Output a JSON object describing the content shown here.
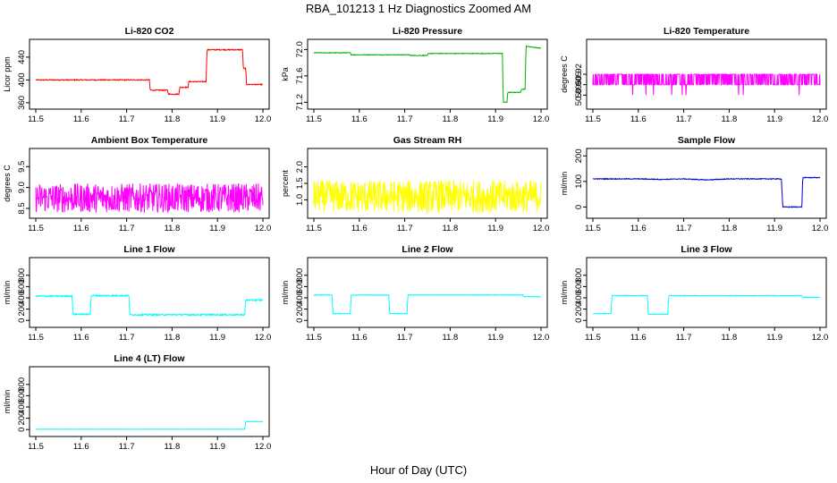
{
  "header": {
    "title": "RBA_101213  1 Hz Diagnostics Zoomed AM"
  },
  "footer": {
    "xlabel": "Hour of Day (UTC)"
  },
  "chart_data": [
    {
      "type": "line",
      "title": "Li-820 CO2",
      "ylabel": "Licor ppm",
      "color": "#ff0000",
      "xlim": [
        11.5,
        12.0
      ],
      "ylim": [
        355,
        465
      ],
      "xticks": [
        "11.5",
        "11.6",
        "11.7",
        "11.8",
        "11.9",
        "12.0"
      ],
      "yticks": [
        {
          "value": 360,
          "label": "360"
        },
        {
          "value": 400,
          "label": "400"
        },
        {
          "value": 440,
          "label": "440"
        }
      ],
      "noise": 0.8,
      "series": [
        {
          "x": [
            11.5,
            11.75,
            11.752,
            11.79,
            11.792,
            11.815,
            11.817,
            11.835,
            11.837,
            11.875,
            11.877,
            11.955,
            11.957,
            11.962,
            11.964,
            12.0
          ],
          "y": [
            400,
            400,
            382,
            382,
            375,
            375,
            387,
            387,
            397,
            397,
            453,
            453,
            420,
            420,
            392,
            392
          ]
        }
      ]
    },
    {
      "type": "line",
      "title": "Li-820 Pressure",
      "ylabel": "kPa",
      "color": "#00b000",
      "xlim": [
        11.5,
        12.0
      ],
      "ylim": [
        71.15,
        72.1
      ],
      "xticks": [
        "11.5",
        "11.6",
        "11.7",
        "11.8",
        "11.9",
        "12.0"
      ],
      "yticks": [
        {
          "value": 71.2,
          "label": "71.2"
        },
        {
          "value": 71.6,
          "label": "71.6"
        },
        {
          "value": 72.0,
          "label": "72.0"
        }
      ],
      "noise": 0.005,
      "series": [
        {
          "x": [
            11.5,
            11.58,
            11.582,
            11.71,
            11.712,
            11.75,
            11.752,
            11.915,
            11.917,
            11.925,
            11.927,
            11.955,
            11.957,
            11.965,
            11.967,
            12.0
          ],
          "y": [
            71.95,
            71.95,
            71.92,
            71.92,
            71.91,
            71.91,
            71.94,
            71.94,
            71.2,
            71.2,
            71.35,
            71.35,
            71.4,
            71.4,
            72.05,
            72.02
          ]
        }
      ]
    },
    {
      "type": "line",
      "title": "Li-820 Temperature",
      "ylabel": "degrees C",
      "color": "#ff00ff",
      "xlim": [
        11.5,
        12.0
      ],
      "ylim": [
        50.875,
        50.965
      ],
      "xticks": [
        "11.5",
        "11.6",
        "11.7",
        "11.8",
        "11.9",
        "12.0"
      ],
      "yticks": [
        {
          "value": 50.89,
          "label": "50.89"
        },
        {
          "value": 50.905,
          "label": "50.905"
        },
        {
          "value": 50.92,
          "label": "50.92"
        }
      ],
      "quantized": [
        50.92,
        50.905,
        50.89
      ],
      "series": [
        {
          "x": [
            11.5,
            12.0
          ],
          "y": [
            50.92,
            50.92
          ]
        }
      ]
    },
    {
      "type": "line",
      "title": "Ambient Box Temperature",
      "ylabel": "degrees C",
      "color": "#ff00ff",
      "xlim": [
        11.5,
        12.0
      ],
      "ylim": [
        8.35,
        9.85
      ],
      "xticks": [
        "11.5",
        "11.6",
        "11.7",
        "11.8",
        "11.9",
        "12.0"
      ],
      "yticks": [
        {
          "value": 8.5,
          "label": "8.5"
        },
        {
          "value": 9.0,
          "label": "9.0"
        },
        {
          "value": 9.5,
          "label": "9.5"
        }
      ],
      "noise": 0.35,
      "series": [
        {
          "x": [
            11.5,
            12.0
          ],
          "y": [
            8.75,
            8.75
          ]
        }
      ]
    },
    {
      "type": "line",
      "title": "Gas Stream RH",
      "ylabel": "percent",
      "color": "#ffff00",
      "xlim": [
        11.5,
        12.0
      ],
      "ylim": [
        0.55,
        2.45
      ],
      "xticks": [
        "11.5",
        "11.6",
        "11.7",
        "11.8",
        "11.9",
        "12.0"
      ],
      "yticks": [
        {
          "value": 1.0,
          "label": "1.0"
        },
        {
          "value": 1.5,
          "label": "1.5"
        },
        {
          "value": 2.0,
          "label": "2.0"
        }
      ],
      "noise": 0.5,
      "series": [
        {
          "x": [
            11.5,
            12.0
          ],
          "y": [
            1.1,
            1.1
          ]
        }
      ]
    },
    {
      "type": "line",
      "title": "Sample Flow",
      "ylabel": "ml/min",
      "color": "#0000cc",
      "xlim": [
        11.5,
        12.0
      ],
      "ylim": [
        -30,
        215
      ],
      "xticks": [
        "11.5",
        "11.6",
        "11.7",
        "11.8",
        "11.9",
        "12.0"
      ],
      "yticks": [
        {
          "value": 0,
          "label": "0"
        },
        {
          "value": 100,
          "label": "100"
        },
        {
          "value": 200,
          "label": "200"
        }
      ],
      "noise": 1.5,
      "series": [
        {
          "x": [
            11.5,
            11.6,
            11.65,
            11.7,
            11.75,
            11.8,
            11.915,
            11.918,
            11.96,
            11.962,
            12.0
          ],
          "y": [
            110,
            110,
            108,
            110,
            106,
            110,
            110,
            0,
            0,
            115,
            115
          ]
        }
      ]
    },
    {
      "type": "line",
      "title": "Line 1 Flow",
      "ylabel": "ml/min",
      "color": "#00ffff",
      "xlim": [
        11.5,
        12.0
      ],
      "ylim": [
        -60,
        1050
      ],
      "xticks": [
        "11.5",
        "11.6",
        "11.7",
        "11.8",
        "11.9",
        "12.0"
      ],
      "yticks": [
        {
          "value": 0,
          "label": "0"
        },
        {
          "value": 200,
          "label": "200"
        },
        {
          "value": 400,
          "label": "400"
        },
        {
          "value": 600,
          "label": "600"
        },
        {
          "value": 800,
          "label": "800"
        }
      ],
      "noise": 12,
      "series": [
        {
          "x": [
            11.5,
            11.58,
            11.582,
            11.62,
            11.622,
            11.705,
            11.707,
            11.96,
            11.962,
            12.0
          ],
          "y": [
            430,
            430,
            110,
            110,
            440,
            440,
            100,
            100,
            360,
            360
          ]
        }
      ]
    },
    {
      "type": "line",
      "title": "Line 2 Flow",
      "ylabel": "ml/min",
      "color": "#00ffff",
      "xlim": [
        11.5,
        12.0
      ],
      "ylim": [
        -60,
        1050
      ],
      "xticks": [
        "11.5",
        "11.6",
        "11.7",
        "11.8",
        "11.9",
        "12.0"
      ],
      "yticks": [
        {
          "value": 0,
          "label": "0"
        },
        {
          "value": 200,
          "label": "200"
        },
        {
          "value": 400,
          "label": "400"
        },
        {
          "value": 600,
          "label": "600"
        },
        {
          "value": 800,
          "label": "800"
        }
      ],
      "noise": 5,
      "series": [
        {
          "x": [
            11.5,
            11.54,
            11.542,
            11.58,
            11.582,
            11.665,
            11.667,
            11.705,
            11.707,
            11.96,
            11.962,
            12.0
          ],
          "y": [
            450,
            450,
            120,
            120,
            450,
            450,
            120,
            120,
            450,
            450,
            420,
            420
          ]
        }
      ]
    },
    {
      "type": "line",
      "title": "Line 3 Flow",
      "ylabel": "ml/min",
      "color": "#00ffff",
      "xlim": [
        11.5,
        12.0
      ],
      "ylim": [
        -60,
        1050
      ],
      "xticks": [
        "11.5",
        "11.6",
        "11.7",
        "11.8",
        "11.9",
        "12.0"
      ],
      "yticks": [
        {
          "value": 0,
          "label": "0"
        },
        {
          "value": 200,
          "label": "200"
        },
        {
          "value": 400,
          "label": "400"
        },
        {
          "value": 600,
          "label": "600"
        },
        {
          "value": 800,
          "label": "800"
        }
      ],
      "noise": 5,
      "series": [
        {
          "x": [
            11.5,
            11.54,
            11.542,
            11.62,
            11.622,
            11.665,
            11.667,
            11.96,
            11.962,
            12.0
          ],
          "y": [
            120,
            120,
            440,
            440,
            110,
            110,
            440,
            440,
            410,
            410
          ]
        }
      ]
    },
    {
      "type": "line",
      "title": "Line 4 (LT) Flow",
      "ylabel": "ml/min",
      "color": "#00ffff",
      "xlim": [
        11.5,
        12.0
      ],
      "ylim": [
        -60,
        1050
      ],
      "xticks": [
        "11.5",
        "11.6",
        "11.7",
        "11.8",
        "11.9",
        "12.0"
      ],
      "yticks": [
        {
          "value": 0,
          "label": "0"
        },
        {
          "value": 200,
          "label": "200"
        },
        {
          "value": 400,
          "label": "400"
        },
        {
          "value": 600,
          "label": "600"
        },
        {
          "value": 800,
          "label": "800"
        }
      ],
      "noise": 1,
      "series": [
        {
          "x": [
            11.5,
            11.96,
            11.962,
            12.0
          ],
          "y": [
            5,
            5,
            140,
            140
          ]
        }
      ]
    }
  ]
}
